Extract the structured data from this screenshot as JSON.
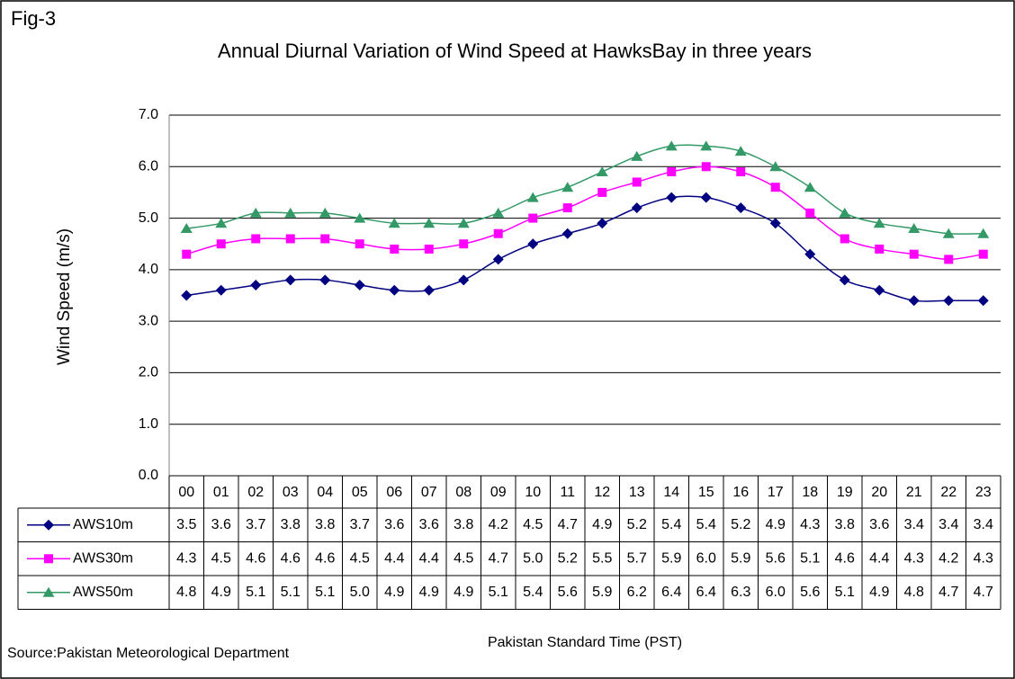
{
  "chart_data": {
    "type": "line",
    "figure_label": "Fig-3",
    "title": "Annual Diurnal Variation of Wind Speed at HawksBay in three years",
    "y_label": "Wind Speed (m/s)",
    "x_label": "Pakistan Standard Time (PST)",
    "source": "Source:Pakistan Meteorological Department",
    "categories": [
      "00",
      "01",
      "02",
      "03",
      "04",
      "05",
      "06",
      "07",
      "08",
      "09",
      "10",
      "11",
      "12",
      "13",
      "14",
      "15",
      "16",
      "17",
      "18",
      "19",
      "20",
      "21",
      "22",
      "23"
    ],
    "ylim": [
      0,
      7
    ],
    "yticks": [
      {
        "value": 0,
        "label": "0.0"
      },
      {
        "value": 1,
        "label": "1.0"
      },
      {
        "value": 2,
        "label": "2.0"
      },
      {
        "value": 3,
        "label": "3.0"
      },
      {
        "value": 4,
        "label": "4.0"
      },
      {
        "value": 5,
        "label": "5.0"
      },
      {
        "value": 6,
        "label": "6.0"
      },
      {
        "value": 7,
        "label": "7.0"
      }
    ],
    "grid": true,
    "series": [
      {
        "name": "AWS10m",
        "color": "#000080",
        "marker": "diamond",
        "values": [
          3.5,
          3.6,
          3.7,
          3.8,
          3.8,
          3.7,
          3.6,
          3.6,
          3.8,
          4.2,
          4.5,
          4.7,
          4.9,
          5.2,
          5.4,
          5.4,
          5.2,
          4.9,
          4.3,
          3.8,
          3.6,
          3.4,
          3.4,
          3.4
        ],
        "value_labels": [
          "3.5",
          "3.6",
          "3.7",
          "3.8",
          "3.8",
          "3.7",
          "3.6",
          "3.6",
          "3.8",
          "4.2",
          "4.5",
          "4.7",
          "4.9",
          "5.2",
          "5.4",
          "5.4",
          "5.2",
          "4.9",
          "4.3",
          "3.8",
          "3.6",
          "3.4",
          "3.4",
          "3.4"
        ]
      },
      {
        "name": "AWS30m",
        "color": "#ff00ff",
        "marker": "square",
        "values": [
          4.3,
          4.5,
          4.6,
          4.6,
          4.6,
          4.5,
          4.4,
          4.4,
          4.5,
          4.7,
          5.0,
          5.2,
          5.5,
          5.7,
          5.9,
          6.0,
          5.9,
          5.6,
          5.1,
          4.6,
          4.4,
          4.3,
          4.2,
          4.3
        ],
        "value_labels": [
          "4.3",
          "4.5",
          "4.6",
          "4.6",
          "4.6",
          "4.5",
          "4.4",
          "4.4",
          "4.5",
          "4.7",
          "5.0",
          "5.2",
          "5.5",
          "5.7",
          "5.9",
          "6.0",
          "5.9",
          "5.6",
          "5.1",
          "4.6",
          "4.4",
          "4.3",
          "4.2",
          "4.3"
        ]
      },
      {
        "name": "AWS50m",
        "color": "#339966",
        "marker": "triangle",
        "values": [
          4.8,
          4.9,
          5.1,
          5.1,
          5.1,
          5.0,
          4.9,
          4.9,
          4.9,
          5.1,
          5.4,
          5.6,
          5.9,
          6.2,
          6.4,
          6.4,
          6.3,
          6.0,
          5.6,
          5.1,
          4.9,
          4.8,
          4.7,
          4.7
        ],
        "value_labels": [
          "4.8",
          "4.9",
          "5.1",
          "5.1",
          "5.1",
          "5.0",
          "4.9",
          "4.9",
          "4.9",
          "5.1",
          "5.4",
          "5.6",
          "5.9",
          "6.2",
          "6.4",
          "6.4",
          "6.3",
          "6.0",
          "5.6",
          "5.1",
          "4.9",
          "4.8",
          "4.7",
          "4.7"
        ]
      }
    ]
  }
}
